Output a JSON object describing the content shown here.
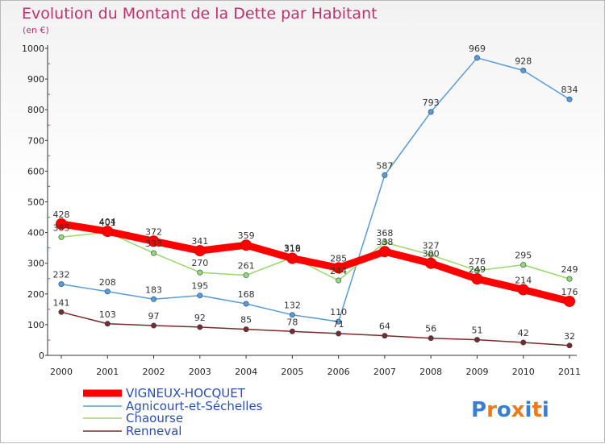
{
  "title": "Evolution du Montant de la Dette par Habitant",
  "subtitle": "(en €)",
  "logo": {
    "text": "Proxiti",
    "colors": [
      "#3a7fd0",
      "#e87a20",
      "#3a7fd0",
      "#e87a20",
      "#3a7fd0",
      "#e87a20",
      "#3a7fd0"
    ]
  },
  "chart_data": {
    "type": "line",
    "title": "Evolution du Montant de la Dette par Habitant",
    "subtitle": "(en €)",
    "x": [
      "2000",
      "2001",
      "2002",
      "2003",
      "2004",
      "2005",
      "2006",
      "2007",
      "2008",
      "2009",
      "2010",
      "2011"
    ],
    "ylim": [
      0,
      1000
    ],
    "yticks": [
      0,
      100,
      200,
      300,
      400,
      500,
      600,
      700,
      800,
      900,
      1000
    ],
    "grid": false,
    "legend_position": "bottom-left",
    "series": [
      {
        "name": "VIGNEUX-HOCQUET",
        "color": "#ff0000",
        "values": [
          428,
          404,
          372,
          341,
          359,
          316,
          285,
          338,
          300,
          249,
          214,
          176
        ],
        "labels": [
          "428",
          "404",
          "372",
          "341",
          "359",
          "316",
          "285",
          "338",
          "300",
          "249",
          "214",
          "176"
        ]
      },
      {
        "name": "Agnicourt-et-Séchelles",
        "color": "#5b9bd5",
        "values": [
          232,
          208,
          183,
          195,
          168,
          132,
          110,
          587,
          793,
          969,
          928,
          834
        ],
        "labels": [
          "232",
          "208",
          "183",
          "195",
          "168",
          "132",
          "110",
          "587",
          "793",
          "969",
          "928",
          "834"
        ]
      },
      {
        "name": "Chaourse",
        "color": "#99d86a",
        "values": [
          385,
          401,
          333,
          270,
          261,
          319,
          244,
          368,
          327,
          276,
          295,
          249
        ],
        "labels": [
          "385",
          "401",
          "333",
          "270",
          "261",
          "319",
          "244",
          "368",
          "327",
          "276",
          "295",
          "249"
        ]
      },
      {
        "name": "Renneval",
        "color": "#7a2a2a",
        "values": [
          141,
          103,
          97,
          92,
          85,
          78,
          71,
          64,
          56,
          51,
          42,
          32
        ],
        "labels": [
          "141",
          "103",
          "97",
          "92",
          "85",
          "78",
          "71",
          "64",
          "56",
          "51",
          "42",
          "32"
        ]
      }
    ]
  }
}
